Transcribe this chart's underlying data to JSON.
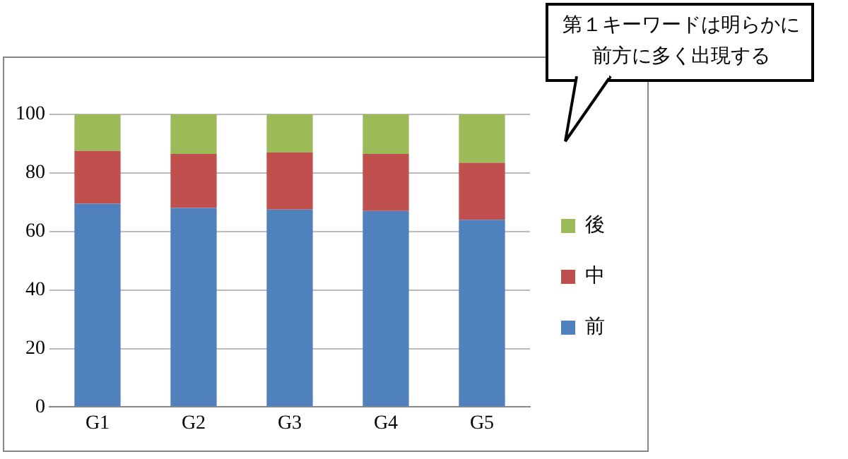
{
  "chart_data": {
    "type": "bar",
    "stacked": true,
    "categories": [
      "G1",
      "G2",
      "G3",
      "G4",
      "G5"
    ],
    "series": [
      {
        "name": "前",
        "color": "#4f81bd",
        "values": [
          69.5,
          68,
          67.5,
          67,
          64
        ]
      },
      {
        "name": "中",
        "color": "#c0504d",
        "values": [
          18,
          18.5,
          19.5,
          19.5,
          19.5
        ]
      },
      {
        "name": "後",
        "color": "#9bbb59",
        "values": [
          12.5,
          13.5,
          13,
          13.5,
          16.5
        ]
      }
    ],
    "ylim": [
      0,
      100
    ],
    "yticks": [
      0,
      20,
      40,
      60,
      80,
      100
    ],
    "grid": "y",
    "legend": "right",
    "annotations": [
      "第１キーワードは明らかに前方に多く出現する"
    ]
  }
}
